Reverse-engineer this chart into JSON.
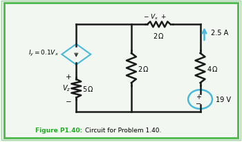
{
  "bg_color": "#f2f7f2",
  "border_color_outer": "#a0d0a0",
  "border_color_inner": "#4ab84a",
  "text_color": "#000000",
  "figure_label_color": "#22aa22",
  "wire_color": "#1a1a1a",
  "resistor_color": "#1a1a1a",
  "current_source_color": "#4ab8d8",
  "voltage_source_color": "#4ab8d8",
  "diamond_color": "#4ab8d8",
  "current_arrow_color": "#4ab8d8",
  "xlim": [
    0,
    7
  ],
  "ylim": [
    0,
    5.2
  ],
  "figsize": [
    3.5,
    2.07
  ],
  "dpi": 100
}
